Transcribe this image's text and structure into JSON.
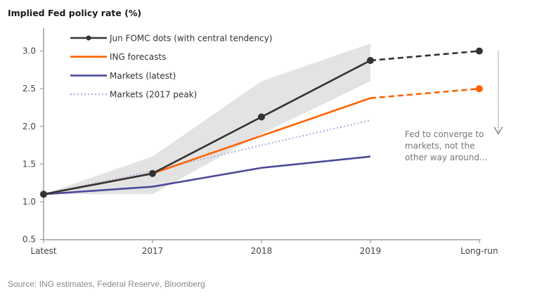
{
  "chart_data": {
    "type": "line",
    "title": "Implied Fed policy rate (%)",
    "xlabel": "",
    "ylabel": "",
    "categories": [
      "Latest",
      "2017",
      "2018",
      "2019",
      "Long-run"
    ],
    "ylim": [
      0.5,
      3.25
    ],
    "yticks": [
      0.5,
      1.0,
      1.5,
      2.0,
      2.5,
      3.0
    ],
    "ytick_labels": [
      "0.5",
      "1.0",
      "1.5",
      "2.0",
      "2.5",
      "3.0"
    ],
    "grid": false,
    "legend_position": "top-left",
    "series": [
      {
        "name": "Jun FOMC dots (with central tendency)",
        "color": "#333333",
        "style": "solid-with-markers",
        "values": [
          1.1,
          1.375,
          2.125,
          2.875,
          3.0
        ],
        "dashed_from_index": 3
      },
      {
        "name": "ING forecasts",
        "color": "#ff6200",
        "style": "solid",
        "values": [
          1.1,
          1.375,
          1.875,
          2.375,
          2.5
        ],
        "dashed_from_index": 3,
        "end_marker": true
      },
      {
        "name": "Markets (latest)",
        "color": "#4c4a9a",
        "style": "solid",
        "values": [
          1.1,
          1.2,
          1.45,
          1.6,
          null
        ]
      },
      {
        "name": "Markets (2017 peak)",
        "color": "#b5b2e0",
        "style": "dotted",
        "values": [
          1.1,
          1.41,
          1.75,
          2.08,
          null
        ]
      }
    ],
    "central_tendency_band": {
      "color": "#e3e3e3",
      "upper": [
        1.1,
        1.6,
        2.6,
        3.1
      ],
      "lower": [
        1.1,
        1.1,
        1.9,
        2.6
      ]
    },
    "annotations": [
      {
        "text_lines": [
          "Fed to converge to",
          "markets, not the",
          "other way around..."
        ],
        "arrow": "down",
        "arrow_color": "#888888",
        "arrow_from_value": 3.0,
        "arrow_to_value": 1.9
      }
    ]
  },
  "source": "Source: ING estimates, Federal Reserve, Bloomberg"
}
